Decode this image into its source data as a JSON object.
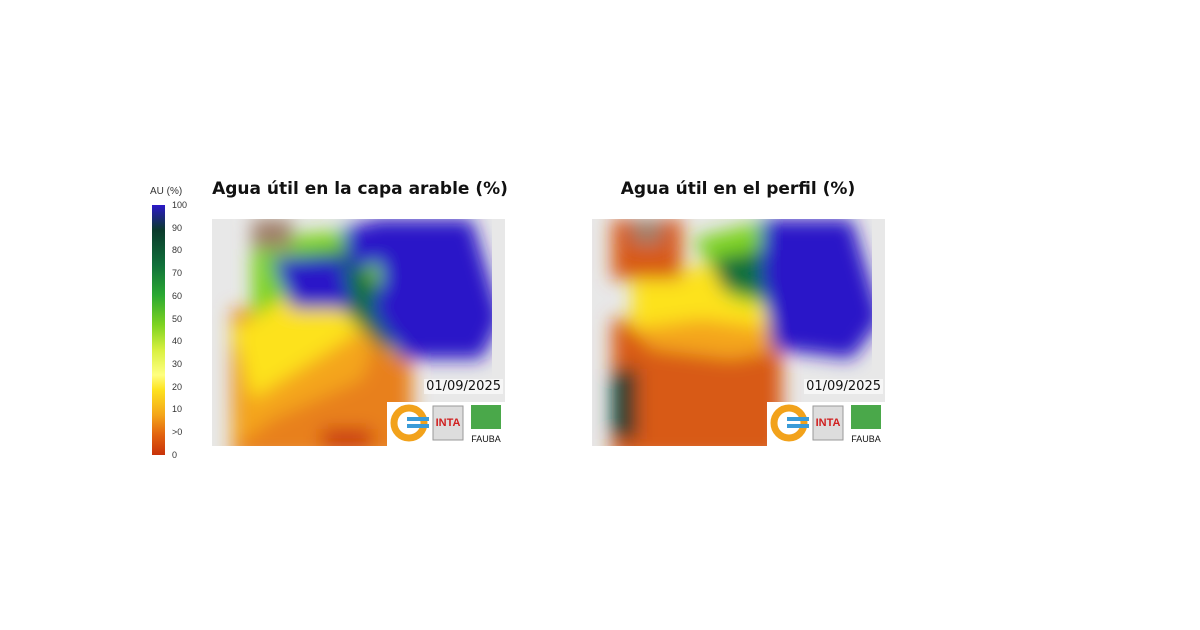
{
  "legend": {
    "title": "AU (%)",
    "ticks": [
      "100",
      "90",
      "80",
      "70",
      "60",
      "50",
      "40",
      "30",
      "20",
      "10",
      ">0",
      "0"
    ],
    "colors": {
      "0": "#c8320a",
      "10": "#e2620f",
      "20": "#f4a51a",
      "30": "#ffff80",
      "50": "#7ed321",
      "70": "#2aa832",
      "90": "#0b3a2c",
      "100": "#2b18c8"
    }
  },
  "maps": [
    {
      "title": "Agua útil en la capa arable (%)",
      "date": "01/09/2025",
      "logos": {
        "inta": "INTA",
        "fauba": "FAUBA"
      }
    },
    {
      "title": "Agua útil en el perfil (%)",
      "date": "01/09/2025",
      "logos": {
        "inta": "INTA",
        "fauba": "FAUBA"
      }
    }
  ]
}
